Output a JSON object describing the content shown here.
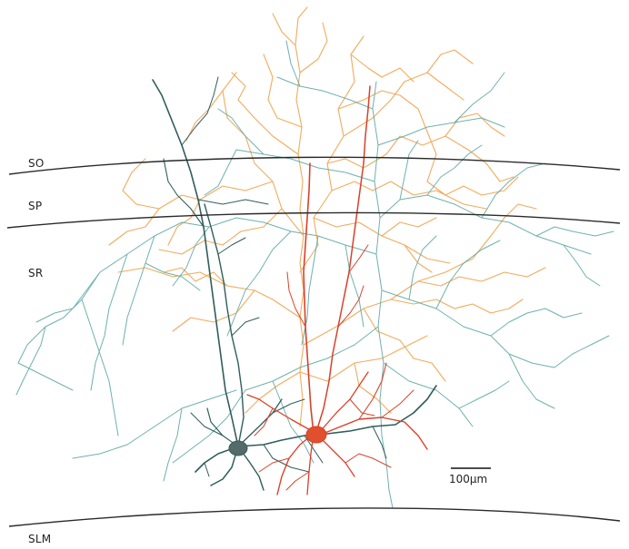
{
  "layers": {
    "so": "SO",
    "sp": "SP",
    "sr": "SR",
    "slm": "SLM"
  },
  "scale_bar": {
    "label": "100μm"
  },
  "colors": {
    "boundary": "#2a2a2a",
    "orange_neuron": "#f0a24c",
    "teal_neuron": "#5fa9a6",
    "dark_neuron": "#2f5e5c",
    "red_neuron": "#d9412a",
    "soma_dark": "#556a6a",
    "soma_red": "#e0502f"
  },
  "icons": {
    "neuron_trace": "neuron-trace-illustration"
  }
}
